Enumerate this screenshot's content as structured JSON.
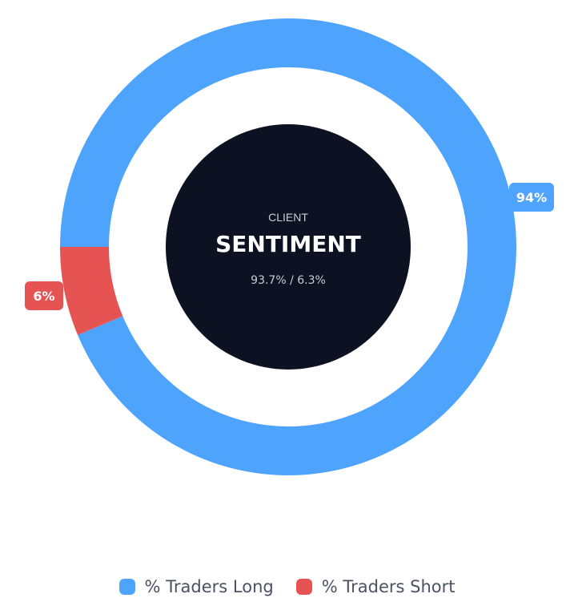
{
  "chart_data": {
    "type": "pie",
    "variant": "donut",
    "center": {
      "kicker": "CLIENT",
      "title": "SENTIMENT",
      "subtitle": "93.7% / 6.3%"
    },
    "slices": [
      {
        "name": "% Traders Long",
        "value": 93.7,
        "label": "94%",
        "color": "#4ea3fc"
      },
      {
        "name": "% Traders Short",
        "value": 6.3,
        "label": "6%",
        "color": "#e65353"
      }
    ],
    "legend_position": "bottom-center"
  },
  "colors": {
    "center_fill": "#0c1221",
    "center_kicker": "#c8ccd6",
    "center_title": "#ffffff",
    "center_subtitle": "#c8ccd6",
    "legend_text": "#4a5263"
  }
}
